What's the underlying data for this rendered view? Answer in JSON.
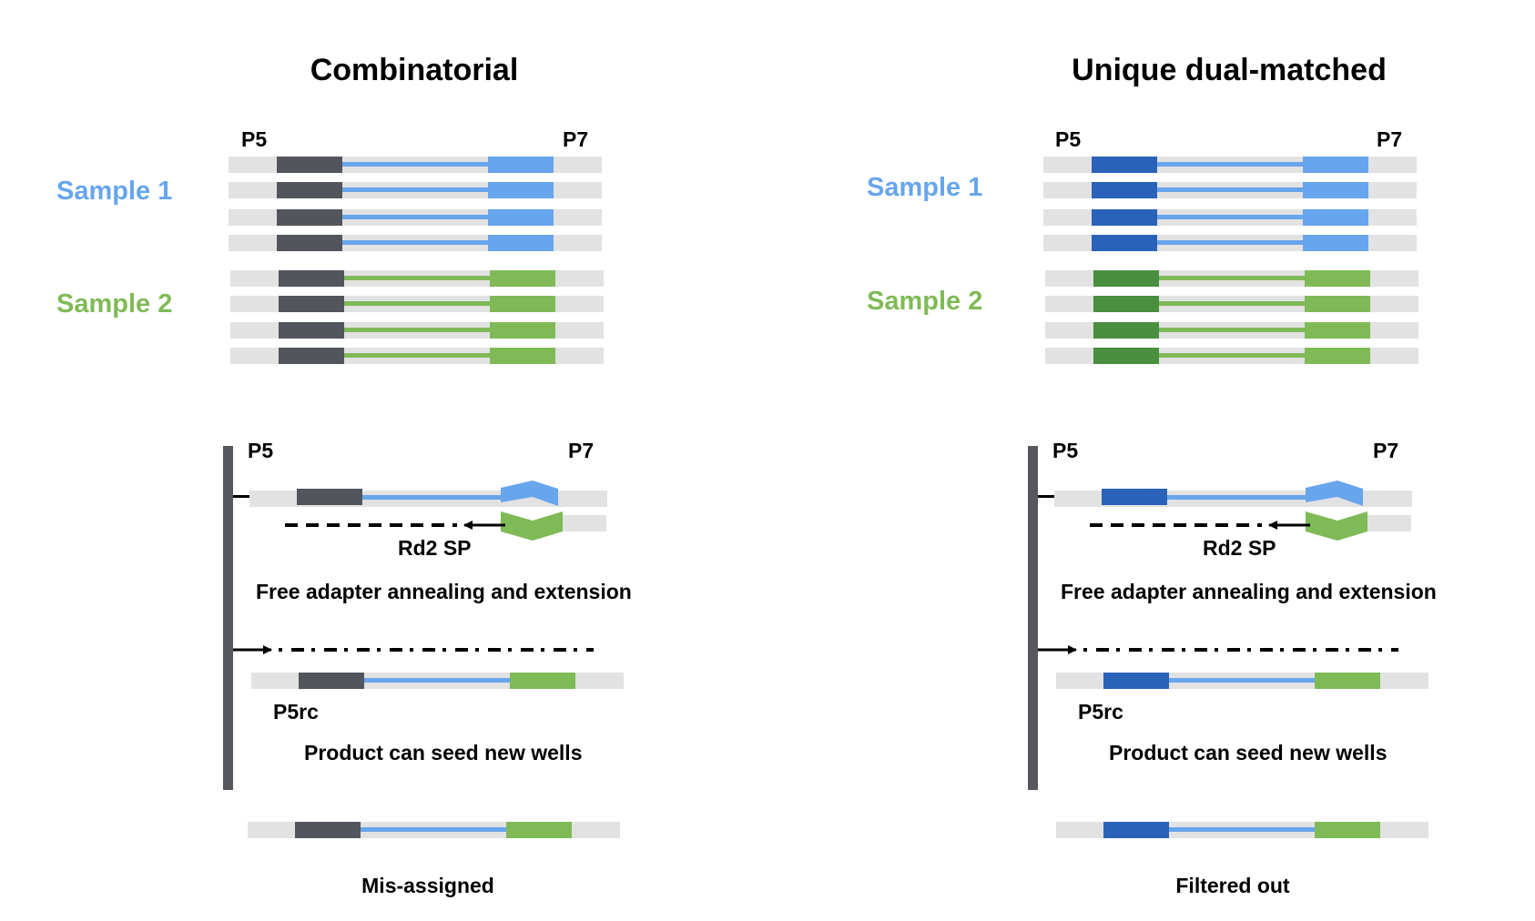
{
  "colors": {
    "adapter_gray": "#e2e2e2",
    "index_dark": "#52555b",
    "index_blue_dark": "#2a62b9",
    "index_green_dark": "#4a8e3f",
    "blue": "#67a5ec",
    "green": "#7fba57",
    "bar": "#56585d",
    "black": "#000000"
  },
  "panels": [
    {
      "title": "Combinatorial",
      "p5_label": "P5",
      "p7_label": "P7",
      "sample1_label": "Sample 1",
      "sample2_label": "Sample 2",
      "rd2_label": "Rd2 SP",
      "annealing_caption": "Free adapter annealing and extension",
      "p5rc_label": "P5rc",
      "seed_caption": "Product can seed new wells",
      "outcome_caption": "Mis-assigned"
    },
    {
      "title": "Unique dual-matched",
      "p5_label": "P5",
      "p7_label": "P7",
      "sample1_label": "Sample 1",
      "sample2_label": "Sample 2",
      "rd2_label": "Rd2 SP",
      "annealing_caption": "Free adapter annealing and extension",
      "p5rc_label": "P5rc",
      "seed_caption": "Product can seed new wells",
      "outcome_caption": "Filtered out"
    }
  ]
}
